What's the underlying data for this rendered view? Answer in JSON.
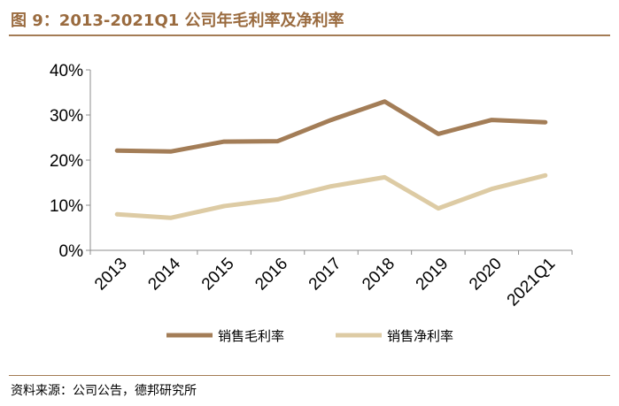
{
  "header": {
    "title": "图 9：2013-2021Q1 公司年毛利率及净利率"
  },
  "footer": {
    "source": "资料来源：公司公告，德邦研究所"
  },
  "chart_data": {
    "type": "line",
    "categories": [
      "2013",
      "2014",
      "2015",
      "2016",
      "2017",
      "2018",
      "2019",
      "2020",
      "2021Q1"
    ],
    "ylim": [
      0,
      40
    ],
    "yticks": [
      0,
      10,
      20,
      30,
      40
    ],
    "ytick_labels": [
      "0%",
      "10%",
      "20%",
      "30%",
      "40%"
    ],
    "grid": false,
    "legend_position": "bottom",
    "series": [
      {
        "name": "销售毛利率",
        "color": "#A37D57",
        "values": [
          22.1,
          21.9,
          24.1,
          24.2,
          28.9,
          33.0,
          25.8,
          28.9,
          28.4
        ]
      },
      {
        "name": "销售净利率",
        "color": "#DDCBA4",
        "values": [
          8.0,
          7.2,
          9.8,
          11.3,
          14.2,
          16.2,
          9.3,
          13.6,
          16.6
        ]
      }
    ]
  }
}
